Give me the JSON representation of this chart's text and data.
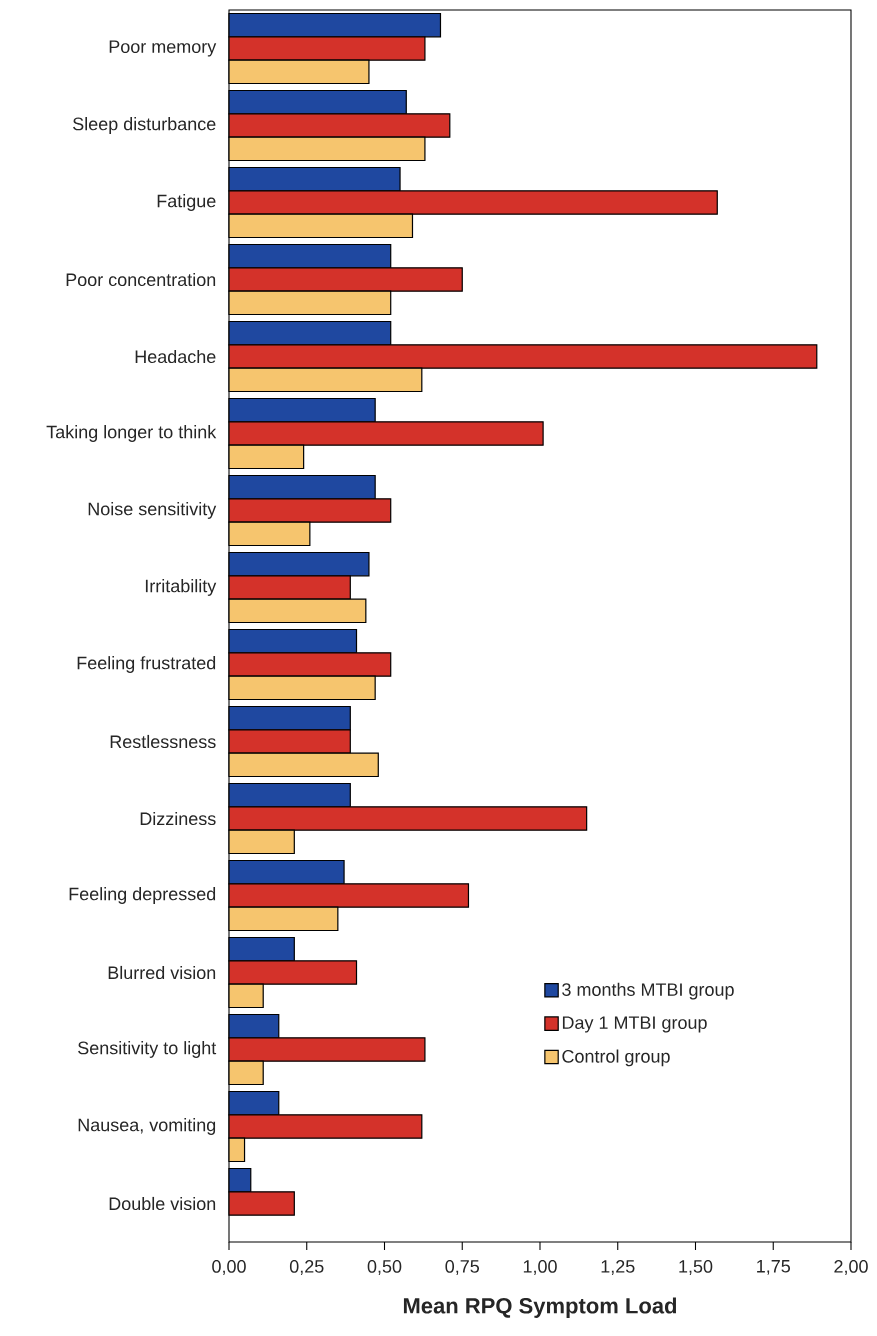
{
  "chart_data": {
    "type": "bar",
    "orientation": "horizontal",
    "xlabel": "Mean RPQ Symptom Load",
    "categories": [
      "Poor memory",
      "Sleep disturbance",
      "Fatigue",
      "Poor concentration",
      "Headache",
      "Taking longer to think",
      "Noise sensitivity",
      "Irritability",
      "Feeling frustrated",
      "Restlessness",
      "Dizziness",
      "Feeling depressed",
      "Blurred vision",
      "Sensitivity to light",
      "Nausea, vomiting",
      "Double vision"
    ],
    "series": [
      {
        "name": "3 months MTBI group",
        "color": "#1f48a0",
        "values": [
          0.68,
          0.57,
          0.55,
          0.52,
          0.52,
          0.47,
          0.47,
          0.45,
          0.41,
          0.39,
          0.39,
          0.37,
          0.21,
          0.16,
          0.16,
          0.07
        ]
      },
      {
        "name": "Day 1 MTBI group",
        "color": "#d4322a",
        "values": [
          0.63,
          0.71,
          1.57,
          0.75,
          1.89,
          1.01,
          0.52,
          0.39,
          0.52,
          0.39,
          1.15,
          0.77,
          0.41,
          0.63,
          0.62,
          0.21
        ]
      },
      {
        "name": "Control group",
        "color": "#f6c56e",
        "values": [
          0.45,
          0.63,
          0.59,
          0.52,
          0.62,
          0.24,
          0.26,
          0.44,
          0.47,
          0.48,
          0.21,
          0.35,
          0.11,
          0.11,
          0.05,
          null
        ]
      }
    ],
    "xlim": [
      0,
      2
    ],
    "xticks": [
      {
        "value": 0,
        "label": "0,00"
      },
      {
        "value": 0.25,
        "label": "0,25"
      },
      {
        "value": 0.5,
        "label": "0,50"
      },
      {
        "value": 0.75,
        "label": "0,75"
      },
      {
        "value": 1,
        "label": "1,00"
      },
      {
        "value": 1.25,
        "label": "1,25"
      },
      {
        "value": 1.5,
        "label": "1,50"
      },
      {
        "value": 1.75,
        "label": "1,75"
      },
      {
        "value": 2,
        "label": "2,00"
      }
    ],
    "legend": "bottom right",
    "grid": false
  }
}
